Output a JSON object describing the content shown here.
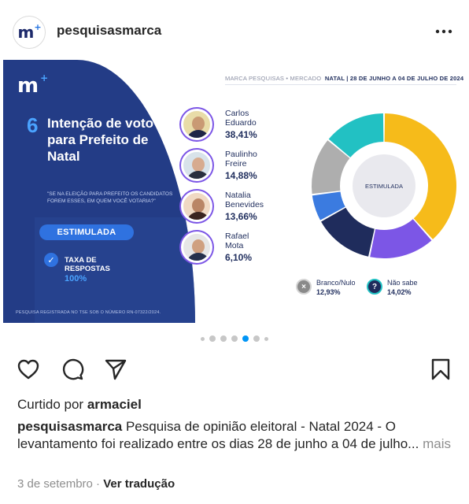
{
  "post": {
    "username": "pesquisasmarca",
    "avatar_logo": "m",
    "avatar_logo_plus": "+",
    "more_icon": "more-horizontal-icon"
  },
  "slide": {
    "logo": "m",
    "logo_plus": "+",
    "question_number": "6",
    "title": "Intenção de voto para Prefeito de Natal",
    "question": "\"SE NA ELEIÇÃO PARA PREFEITO OS CANDIDATOS FOREM ESSES, EM QUEM VOCÊ VOTARIA?\"",
    "stimulated_button": "ESTIMULADA",
    "response_rate_label": "TAXA DE RESPOSTAS",
    "response_rate_value": "100%",
    "tse_note": "PESQUISA REGISTRADA NO TSE SOB O NÚMERO RN-07322/2024.",
    "credit_left": "MARCA PESQUISAS • MERCADO",
    "credit_right": "NATAL | 28 DE JUNHO A 04 DE JULHO DE 2024",
    "donut_center_label": "ESTIMULADA",
    "candidates": [
      {
        "name_line1": "Carlos",
        "name_line2": "Eduardo",
        "pct": "38,41%"
      },
      {
        "name_line1": "Paulinho",
        "name_line2": "Freire",
        "pct": "14,88%"
      },
      {
        "name_line1": "Natalia",
        "name_line2": "Benevides",
        "pct": "13,66%"
      },
      {
        "name_line1": "Rafael",
        "name_line2": "Mota",
        "pct": "6,10%"
      }
    ],
    "others": [
      {
        "label": "Branco/Nulo",
        "pct": "12,93%",
        "icon": "x-icon"
      },
      {
        "label": "Não sabe",
        "pct": "14,02%",
        "icon": "question-icon"
      }
    ]
  },
  "chart_data": {
    "type": "pie",
    "donut": true,
    "title": "ESTIMULADA",
    "categories": [
      "Carlos Eduardo",
      "Paulinho Freire",
      "Natalia Benevides",
      "Rafael Mota",
      "Branco/Nulo",
      "Não sabe"
    ],
    "values": [
      38.41,
      14.88,
      13.66,
      6.1,
      12.93,
      14.02
    ],
    "colors": [
      "#f6bb1a",
      "#7c56e6",
      "#1f2c5c",
      "#3b7be0",
      "#aeaeae",
      "#22c1c3"
    ]
  },
  "carousel": {
    "slide_count": 7,
    "active_index": 4
  },
  "actions": {
    "like_icon": "heart-icon",
    "comment_icon": "comment-icon",
    "share_icon": "send-icon",
    "save_icon": "bookmark-icon"
  },
  "likes": {
    "prefix": "Curtido por ",
    "user": "armaciel"
  },
  "caption": {
    "user": "pesquisasmarca",
    "text": " Pesquisa de opinião eleitoral - Natal 2024 - O levantamento foi realizado entre os dias 28 de junho a 04 de julho...",
    "more": " mais"
  },
  "meta": {
    "date": "3 de setembro",
    "separator": " · ",
    "translate": "Ver tradução"
  },
  "colors": {
    "navy": "#233c86",
    "accent_blue": "#2f72e0",
    "instagram_blue": "#0095f6"
  }
}
